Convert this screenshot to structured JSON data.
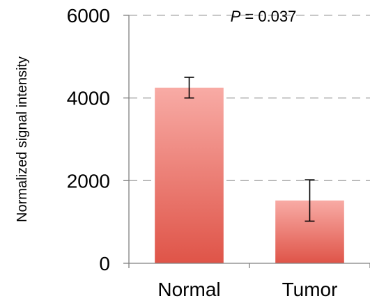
{
  "chart_data": {
    "type": "bar",
    "title": "",
    "xlabel": "",
    "ylabel": "Normalized signal intensity",
    "categories": [
      "Normal",
      "Tumor"
    ],
    "values": [
      4250,
      1520
    ],
    "errors": [
      250,
      500
    ],
    "ylim": [
      0,
      6000
    ],
    "yticks": [
      0,
      2000,
      4000,
      6000
    ],
    "ytick_labels": [
      "0",
      "2000",
      "4000",
      "6000"
    ],
    "grid": true,
    "annotation": {
      "p_symbol": "P",
      "p_rest": " = 0.037"
    },
    "colors": {
      "bar_top": "#f8aba5",
      "bar_bottom": "#df5448",
      "grid": "#a6a6a6",
      "axis": "#808080",
      "errorbar": "#000000"
    }
  }
}
